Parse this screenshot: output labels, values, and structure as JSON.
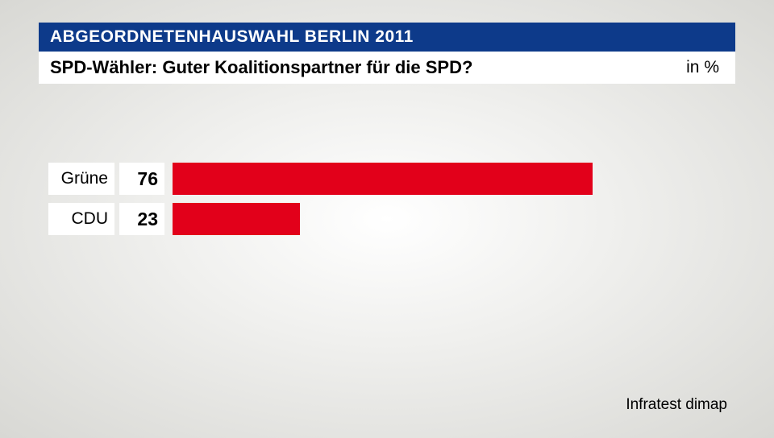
{
  "header": {
    "title": "ABGEORDNETENHAUSWAHL BERLIN 2011",
    "band_color": "#0d3a8a",
    "text_color": "#ffffff",
    "font_size": 21
  },
  "subtitle": {
    "question": "SPD-Wähler: Guter Koalitionspartner für die SPD?",
    "unit": "in %",
    "background": "#ffffff",
    "font_size": 22
  },
  "chart": {
    "type": "bar",
    "orientation": "horizontal",
    "max_value": 100,
    "bar_color": "#e2001a",
    "label_box_bg": "#ffffff",
    "value_box_bg": "#ffffff",
    "label_font_size": 21,
    "value_font_size": 23,
    "items": [
      {
        "label": "Grüne",
        "value": 76
      },
      {
        "label": "CDU",
        "value": 23
      }
    ]
  },
  "source": {
    "text": "Infratest dimap",
    "font_size": 19
  }
}
